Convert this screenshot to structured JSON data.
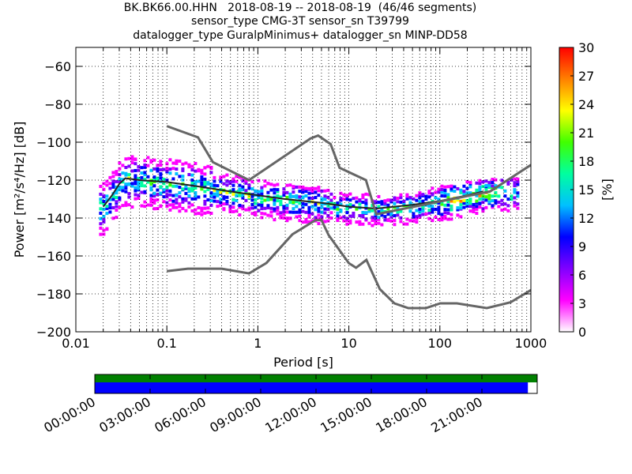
{
  "title": {
    "line1": "BK.BK66.00.HHN   2018-08-19 -- 2018-08-19  (46/46 segments)",
    "line2": "sensor_type CMG-3T sensor_sn T39799",
    "line3": "datalogger_type GuralpMinimus+ datalogger_sn MINP-DD58"
  },
  "chart_data": {
    "type": "heatmap",
    "xlabel": "Period [s]",
    "ylabel": "Power [m²/s⁴/Hz] [dB]",
    "xscale": "log",
    "xlim": [
      0.01,
      1000
    ],
    "ylim": [
      -200,
      -50
    ],
    "x_ticks": [
      "0.01",
      "0.1",
      "1",
      "10",
      "100",
      "1000"
    ],
    "y_ticks": [
      "−60",
      "−80",
      "−100",
      "−120",
      "−140",
      "−160",
      "−180",
      "−200"
    ],
    "grid": true,
    "colorbar": {
      "label": "[%]",
      "range": [
        0,
        30
      ],
      "ticks": [
        "0",
        "3",
        "6",
        "9",
        "12",
        "15",
        "18",
        "21",
        "24",
        "27",
        "30"
      ],
      "colors": [
        "#ffffff",
        "#ff00ff",
        "#8000ff",
        "#0000ff",
        "#00c0ff",
        "#00ffa0",
        "#40ff00",
        "#ffff00",
        "#ff8000",
        "#ff0000"
      ]
    },
    "high_noise_model": {
      "period": [
        0.1,
        0.22,
        0.32,
        0.8,
        3.8,
        4.6,
        6.3,
        7.9,
        15.4,
        20,
        354.8,
        1000
      ],
      "power": [
        -91.5,
        -97.4,
        -110.5,
        -120,
        -98,
        -96.5,
        -101,
        -113.5,
        -120,
        -138,
        -126,
        -112
      ]
    },
    "low_noise_model": {
      "period": [
        0.1,
        0.17,
        0.4,
        0.8,
        1.24,
        2.4,
        4.3,
        5,
        6,
        10,
        12,
        15.6,
        21.9,
        31.6,
        45,
        70,
        101,
        154,
        328,
        600,
        1000
      ],
      "power": [
        -168,
        -166.7,
        -166.7,
        -169.2,
        -163.7,
        -148.6,
        -141.1,
        -141.1,
        -149,
        -163.8,
        -166.2,
        -162.1,
        -177.5,
        -185,
        -187.5,
        -187.5,
        -185,
        -185,
        -187.5,
        -184.4,
        -178
      ]
    },
    "mean_curve": {
      "period": [
        0.02,
        0.025,
        0.03,
        0.035,
        0.05,
        0.1,
        0.2,
        0.5,
        1,
        2,
        5,
        10,
        20,
        50,
        100,
        200,
        300
      ],
      "power": [
        -134,
        -128,
        -122,
        -119,
        -120,
        -121,
        -123,
        -126,
        -128,
        -130,
        -132,
        -134,
        -135,
        -133,
        -131,
        -128,
        -126
      ]
    },
    "coverage": {
      "time_ticks": [
        "00:00:00",
        "03:00:00",
        "06:00:00",
        "09:00:00",
        "12:00:00",
        "15:00:00",
        "18:00:00",
        "21:00:00"
      ],
      "data_fraction": 0.979,
      "colors": {
        "data": "#0000ff",
        "processed": "#008000"
      }
    }
  }
}
